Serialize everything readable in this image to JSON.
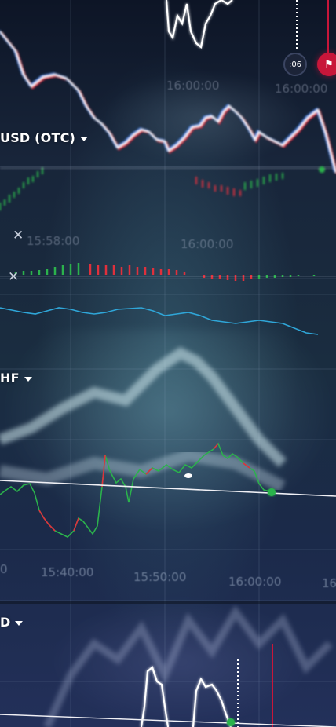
{
  "pairs": {
    "top": "USD (OTC)",
    "middle": "HF",
    "bottom": "D"
  },
  "times": {
    "top_a": "16:00:00",
    "top_b": "16:00:00",
    "top_c": "15:58:00",
    "top_d": "16:00:00",
    "axis_a": "15:40:00",
    "axis_b": "15:50:00",
    "axis_c": "16:00:00",
    "axis_left": "0",
    "axis_right": "16"
  },
  "timer": {
    "value": ":06"
  },
  "icons": {
    "close": "close-icon",
    "flag": "flag-icon",
    "caret": "chevron-down-icon"
  },
  "colors": {
    "line_white": "#ffffff",
    "line_red": "#e0203a",
    "line_blue": "#3b7fe0",
    "candle_green": "#2bb24c",
    "candle_red": "#e0303c",
    "indicator_cyan": "#2fa6d8",
    "timer_bg": "#1c2438",
    "flag_bg": "#c8163a"
  }
}
